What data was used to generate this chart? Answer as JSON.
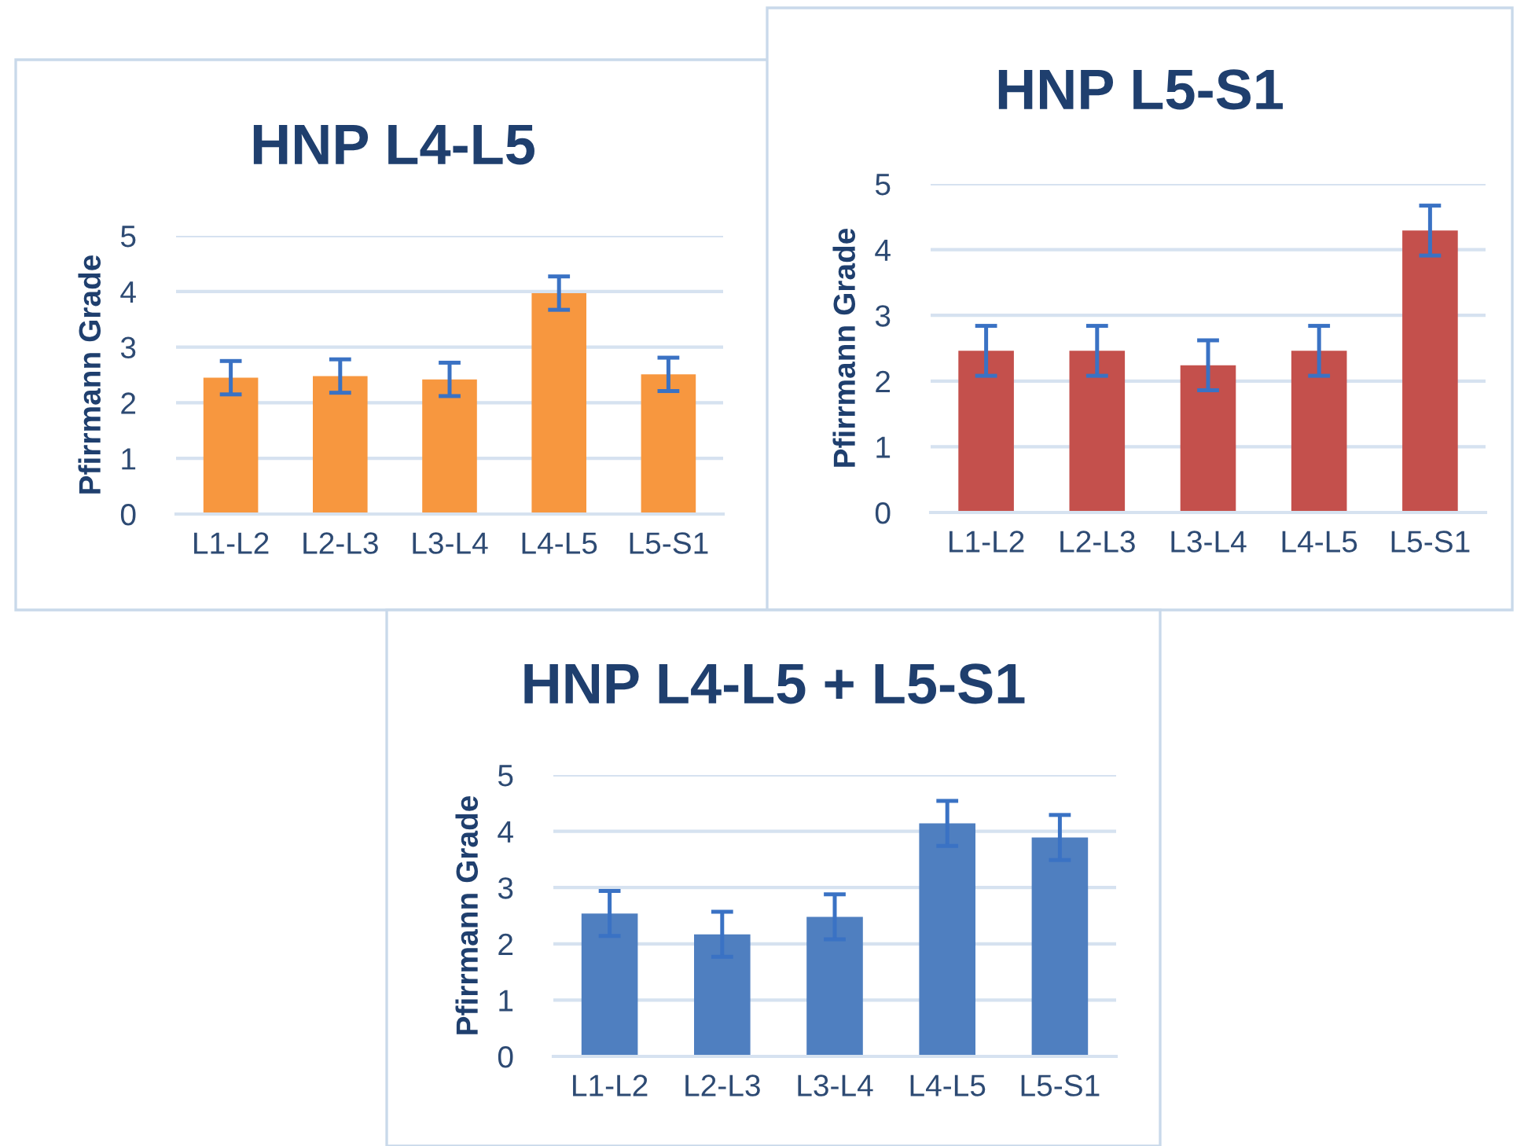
{
  "chart_data": [
    {
      "type": "bar",
      "title": "HNP L4-L5",
      "ylabel": "Pfirrmann Grade",
      "categories": [
        "L1-L2",
        "L2-L3",
        "L3-L4",
        "L4-L5",
        "L5-S1"
      ],
      "values": [
        2.45,
        2.48,
        2.42,
        3.97,
        2.51
      ],
      "errors": [
        0.3,
        0.3,
        0.3,
        0.3,
        0.3
      ],
      "color": "#f7973f",
      "ylim": [
        0,
        5
      ],
      "yticks": [
        0,
        1,
        2,
        3,
        4,
        5
      ],
      "grid": "y"
    },
    {
      "type": "bar",
      "title": "HNP L5-S1",
      "ylabel": "Pfirrmann Grade",
      "categories": [
        "L1-L2",
        "L2-L3",
        "L3-L4",
        "L4-L5",
        "L5-S1"
      ],
      "values": [
        2.46,
        2.46,
        2.24,
        2.46,
        4.29
      ],
      "errors": [
        0.38,
        0.38,
        0.38,
        0.38,
        0.38
      ],
      "color": "#c4504c",
      "ylim": [
        0,
        5
      ],
      "yticks": [
        0,
        1,
        2,
        3,
        4,
        5
      ],
      "grid": "y"
    },
    {
      "type": "bar",
      "title": "HNP L4-L5 + L5-S1",
      "ylabel": "Pfirrmann Grade",
      "categories": [
        "L1-L2",
        "L2-L3",
        "L3-L4",
        "L4-L5",
        "L5-S1"
      ],
      "values": [
        2.54,
        2.17,
        2.48,
        4.14,
        3.89
      ],
      "errors": [
        0.4,
        0.4,
        0.4,
        0.4,
        0.4
      ],
      "color": "#4f7fc0",
      "ylim": [
        0,
        5
      ],
      "yticks": [
        0,
        1,
        2,
        3,
        4,
        5
      ],
      "grid": "y"
    }
  ]
}
